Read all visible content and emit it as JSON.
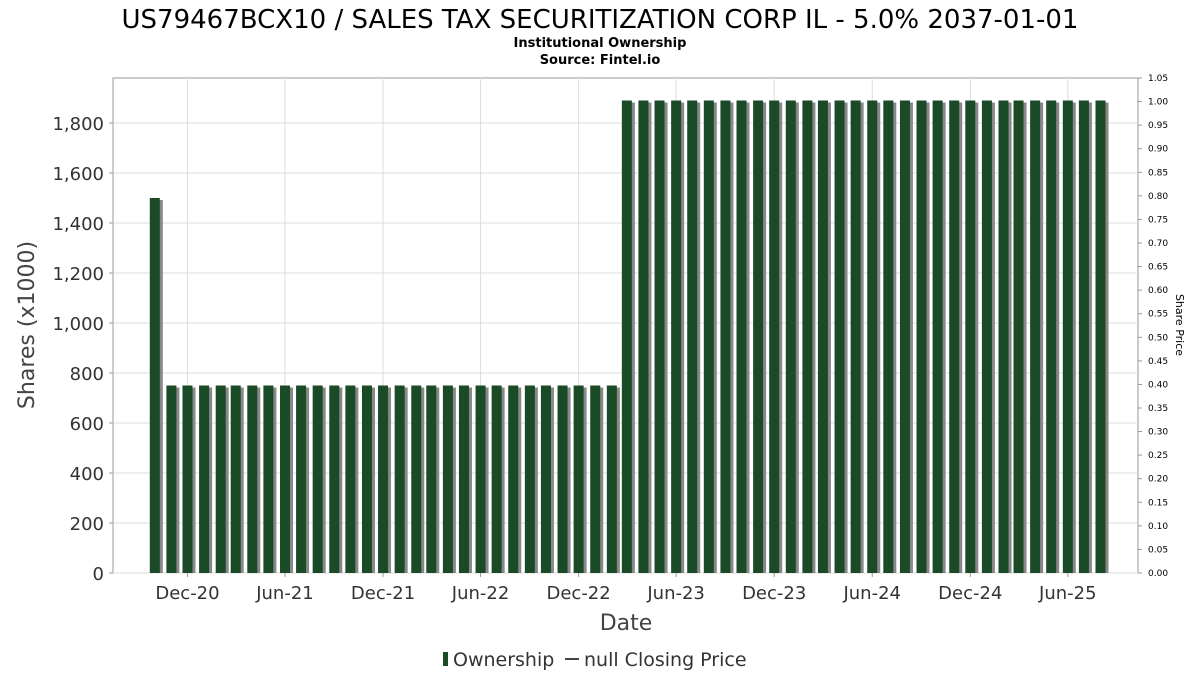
{
  "chart_data": {
    "type": "bar",
    "title": "US79467BCX10 / SALES TAX SECURITIZATION CORP IL - 5.0% 2037-01-01",
    "subtitle": "Institutional Ownership",
    "source": "Source: Fintel.io",
    "xlabel": "Date",
    "ylabel": "Shares (x1000)",
    "y2label": "Share Price",
    "ylim": [
      0,
      1980
    ],
    "y2lim": [
      0,
      1.05
    ],
    "yticks": [
      0,
      200,
      400,
      600,
      800,
      1000,
      1200,
      1400,
      1600,
      1800
    ],
    "ytick_labels": [
      "0",
      "200",
      "400",
      "600",
      "800",
      "1,000",
      "1,200",
      "1,400",
      "1,600",
      "1,800"
    ],
    "y2ticks": [
      0.0,
      0.05,
      0.1,
      0.15,
      0.2,
      0.25,
      0.3,
      0.35,
      0.4,
      0.45,
      0.5,
      0.55,
      0.6,
      0.65,
      0.7,
      0.75,
      0.8,
      0.85,
      0.9,
      0.95,
      1.0,
      1.05
    ],
    "y2tick_labels": [
      "0.00",
      "0.05",
      "0.10",
      "0.15",
      "0.20",
      "0.25",
      "0.30",
      "0.35",
      "0.40",
      "0.45",
      "0.50",
      "0.55",
      "0.60",
      "0.65",
      "0.70",
      "0.75",
      "0.80",
      "0.85",
      "0.90",
      "0.95",
      "1.00",
      "1.05"
    ],
    "xlim": [
      "2020-07-15",
      "2025-10-10"
    ],
    "xticks": [
      "2020-12-01",
      "2021-06-01",
      "2021-12-01",
      "2022-06-01",
      "2022-12-01",
      "2023-06-01",
      "2023-12-01",
      "2024-06-01",
      "2024-12-01",
      "2025-06-01"
    ],
    "xtick_labels": [
      "Dec-20",
      "Jun-21",
      "Dec-21",
      "Jun-22",
      "Dec-22",
      "Jun-23",
      "Dec-23",
      "Jun-24",
      "Dec-24",
      "Jun-25"
    ],
    "grid": true,
    "legend_position": "bottom",
    "series": [
      {
        "name": "Ownership",
        "color": "#1a4a26",
        "points": [
          {
            "x": "2020-10-01",
            "y": 1500
          },
          {
            "x": "2020-11-01",
            "y": 750
          },
          {
            "x": "2020-12-01",
            "y": 750
          },
          {
            "x": "2021-01-01",
            "y": 750
          },
          {
            "x": "2021-02-01",
            "y": 750
          },
          {
            "x": "2021-03-01",
            "y": 750
          },
          {
            "x": "2021-04-01",
            "y": 750
          },
          {
            "x": "2021-05-01",
            "y": 750
          },
          {
            "x": "2021-06-01",
            "y": 750
          },
          {
            "x": "2021-07-01",
            "y": 750
          },
          {
            "x": "2021-08-01",
            "y": 750
          },
          {
            "x": "2021-09-01",
            "y": 750
          },
          {
            "x": "2021-10-01",
            "y": 750
          },
          {
            "x": "2021-11-01",
            "y": 750
          },
          {
            "x": "2021-12-01",
            "y": 750
          },
          {
            "x": "2022-01-01",
            "y": 750
          },
          {
            "x": "2022-02-01",
            "y": 750
          },
          {
            "x": "2022-03-01",
            "y": 750
          },
          {
            "x": "2022-04-01",
            "y": 750
          },
          {
            "x": "2022-05-01",
            "y": 750
          },
          {
            "x": "2022-06-01",
            "y": 750
          },
          {
            "x": "2022-07-01",
            "y": 750
          },
          {
            "x": "2022-08-01",
            "y": 750
          },
          {
            "x": "2022-09-01",
            "y": 750
          },
          {
            "x": "2022-10-01",
            "y": 750
          },
          {
            "x": "2022-11-01",
            "y": 750
          },
          {
            "x": "2022-12-01",
            "y": 750
          },
          {
            "x": "2023-01-01",
            "y": 750
          },
          {
            "x": "2023-02-01",
            "y": 750
          },
          {
            "x": "2023-03-01",
            "y": 1890
          },
          {
            "x": "2023-04-01",
            "y": 1890
          },
          {
            "x": "2023-05-01",
            "y": 1890
          },
          {
            "x": "2023-06-01",
            "y": 1890
          },
          {
            "x": "2023-07-01",
            "y": 1890
          },
          {
            "x": "2023-08-01",
            "y": 1890
          },
          {
            "x": "2023-09-01",
            "y": 1890
          },
          {
            "x": "2023-10-01",
            "y": 1890
          },
          {
            "x": "2023-11-01",
            "y": 1890
          },
          {
            "x": "2023-12-01",
            "y": 1890
          },
          {
            "x": "2024-01-01",
            "y": 1890
          },
          {
            "x": "2024-02-01",
            "y": 1890
          },
          {
            "x": "2024-03-01",
            "y": 1890
          },
          {
            "x": "2024-04-01",
            "y": 1890
          },
          {
            "x": "2024-05-01",
            "y": 1890
          },
          {
            "x": "2024-06-01",
            "y": 1890
          },
          {
            "x": "2024-07-01",
            "y": 1890
          },
          {
            "x": "2024-08-01",
            "y": 1890
          },
          {
            "x": "2024-09-01",
            "y": 1890
          },
          {
            "x": "2024-10-01",
            "y": 1890
          },
          {
            "x": "2024-11-01",
            "y": 1890
          },
          {
            "x": "2024-12-01",
            "y": 1890
          },
          {
            "x": "2025-01-01",
            "y": 1890
          },
          {
            "x": "2025-02-01",
            "y": 1890
          },
          {
            "x": "2025-03-01",
            "y": 1890
          },
          {
            "x": "2025-04-01",
            "y": 1890
          },
          {
            "x": "2025-05-01",
            "y": 1890
          },
          {
            "x": "2025-06-01",
            "y": 1890
          },
          {
            "x": "2025-07-01",
            "y": 1890
          },
          {
            "x": "2025-08-01",
            "y": 1890
          }
        ]
      },
      {
        "name": "null Closing Price",
        "color": "#444444",
        "points": []
      }
    ]
  }
}
